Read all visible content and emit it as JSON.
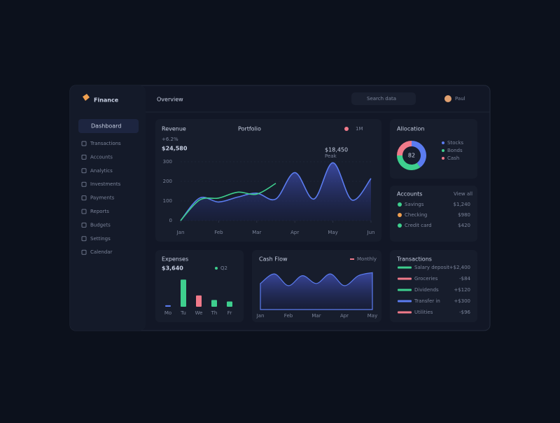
{
  "brand": "Finance",
  "header": {
    "title": "Overview",
    "search": "Search data",
    "user": "Paul"
  },
  "sidebar": {
    "active": "Dashboard",
    "items": [
      "Transactions",
      "Accounts",
      "Analytics",
      "Investments",
      "Payments",
      "Reports",
      "Budgets",
      "Settings",
      "Calendar"
    ]
  },
  "main_chart": {
    "title": "Revenue",
    "subtitle": "Portfolio",
    "total": "$24,580",
    "change": "+6.2%",
    "peak": "$18,450",
    "peak_sub": "Peak",
    "legend": "1M",
    "x": [
      0,
      1,
      2,
      3,
      4,
      5,
      6,
      7,
      8,
      9,
      10
    ],
    "xticks": [
      {
        "value": 0,
        "label": "Jan"
      },
      {
        "value": 2,
        "label": "Feb"
      },
      {
        "value": 4,
        "label": "Mar"
      },
      {
        "value": 6,
        "label": "Apr"
      },
      {
        "value": 8,
        "label": "May"
      },
      {
        "value": 10,
        "label": "Jun"
      }
    ],
    "xlim": [
      0,
      10
    ],
    "ylim": [
      0,
      300
    ],
    "yticks": [
      0,
      100,
      200,
      300
    ],
    "series": [
      {
        "color": "#5b7cf0",
        "values": [
          0,
          115,
          95,
          120,
          140,
          110,
          245,
          110,
          295,
          105,
          215
        ]
      },
      {
        "color": "#3ecf8e",
        "values": [
          0,
          105,
          115,
          145,
          135,
          190,
          null,
          null,
          null,
          null,
          null
        ]
      }
    ]
  },
  "bar_chart": {
    "title": "Expenses",
    "total": "$3,640",
    "legend": "Q2",
    "categories": [
      "Mo",
      "Tu",
      "We",
      "Th",
      "Fr"
    ],
    "values": [
      4,
      72,
      30,
      18,
      14
    ],
    "colors": [
      "#5b7cf0",
      "#3ecf8e",
      "#f07a8a",
      "#3ecf8e",
      "#3ecf8e"
    ],
    "ylim": [
      0,
      80
    ]
  },
  "area_chart": {
    "title": "Cash Flow",
    "legend": "Monthly",
    "x": [
      0,
      1,
      2,
      3,
      4,
      5,
      6,
      7,
      8
    ],
    "xticks": [
      {
        "value": 0,
        "label": "Jan"
      },
      {
        "value": 2,
        "label": "Feb"
      },
      {
        "value": 4,
        "label": "Mar"
      },
      {
        "value": 6,
        "label": "Apr"
      },
      {
        "value": 8,
        "label": "May"
      }
    ],
    "xlim": [
      0,
      8
    ],
    "ylim": [
      0,
      100
    ],
    "values": [
      60,
      82,
      55,
      78,
      60,
      82,
      55,
      78,
      85
    ],
    "color": "#5b7cf0"
  },
  "donut": {
    "title": "Allocation",
    "center": "82",
    "values": [
      40,
      35,
      25
    ],
    "colors": [
      "#5b7cf0",
      "#3ecf8e",
      "#f07a8a"
    ],
    "labels": [
      "Stocks",
      "Bonds",
      "Cash"
    ]
  },
  "accounts": {
    "title": "Accounts",
    "action": "View all",
    "rows": [
      {
        "name": "Savings",
        "amount": "$1,240"
      },
      {
        "name": "Checking",
        "amount": "$980"
      },
      {
        "name": "Credit card",
        "amount": "$420"
      }
    ]
  },
  "transactions": {
    "title": "Transactions",
    "rows": [
      {
        "name": "Salary deposit",
        "amount": "+$2,400"
      },
      {
        "name": "Groceries",
        "amount": "-$84"
      },
      {
        "name": "Dividends",
        "amount": "+$120"
      },
      {
        "name": "Transfer in",
        "amount": "+$300"
      },
      {
        "name": "Utilities",
        "amount": "-$96"
      }
    ]
  }
}
